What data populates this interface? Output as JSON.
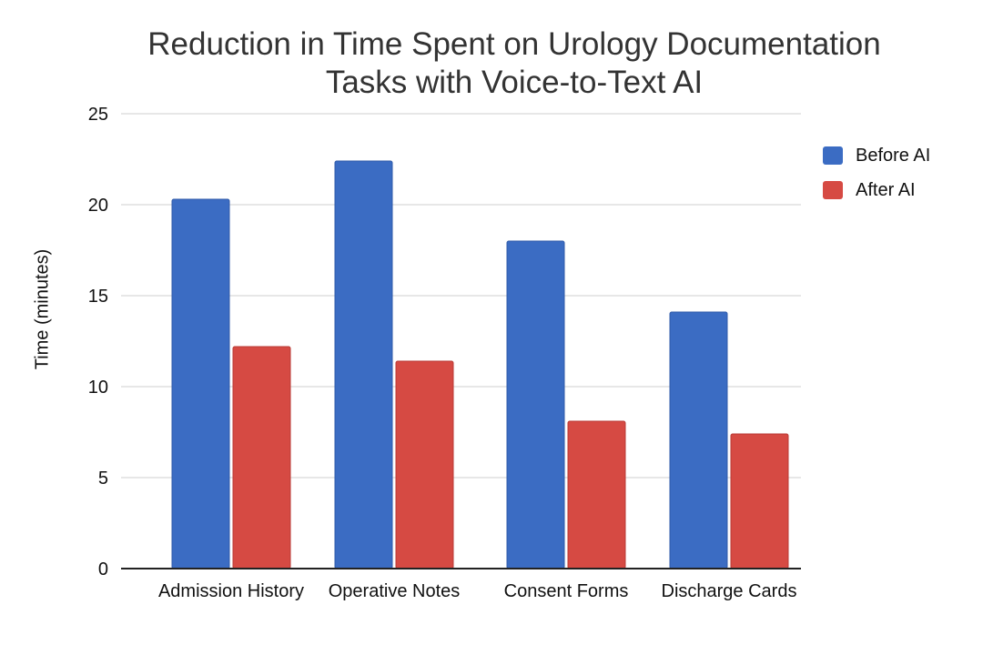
{
  "chart_data": {
    "type": "bar",
    "title": [
      "Reduction in Time Spent on Urology Documentation",
      "Tasks with Voice-to-Text AI"
    ],
    "xlabel": "",
    "ylabel": "Time (minutes)",
    "ylim": [
      0,
      25
    ],
    "yticks": [
      0,
      5,
      10,
      15,
      20,
      25
    ],
    "categories": [
      "Admission History",
      "Operative Notes",
      "Consent Forms",
      "Discharge Cards"
    ],
    "series": [
      {
        "name": "Before AI",
        "color": "#3b6cc3",
        "values": [
          20.3,
          22.4,
          18.0,
          14.1
        ]
      },
      {
        "name": "After AI",
        "color": "#d64a43",
        "values": [
          12.2,
          11.4,
          8.1,
          7.4
        ]
      }
    ],
    "grid": true,
    "legend_position": "right"
  }
}
